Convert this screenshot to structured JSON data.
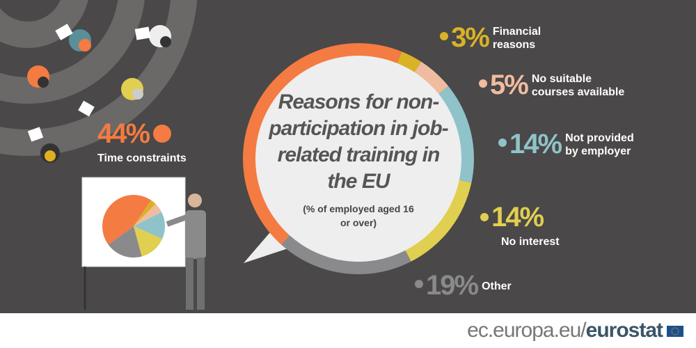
{
  "chart_data": {
    "type": "donut",
    "title": "Reasons for non-participation in job-related training in the EU",
    "subtitle": "(% of employed aged 16 or over)",
    "categories": [
      "Time constraints",
      "Financial reasons",
      "No suitable courses available",
      "Not provided by employer",
      "No interest",
      "Other"
    ],
    "values": [
      44,
      3,
      5,
      14,
      14,
      19
    ],
    "value_labels": [
      "44%",
      "3%",
      "5%",
      "14%",
      "14%",
      "19%"
    ],
    "colors": [
      "#f47b42",
      "#d9b226",
      "#f0bca0",
      "#8fc3c9",
      "#e0cf50",
      "#8a8a8c"
    ]
  },
  "footer": {
    "domain": "ec.europa.eu/",
    "brand": "eurostat"
  }
}
